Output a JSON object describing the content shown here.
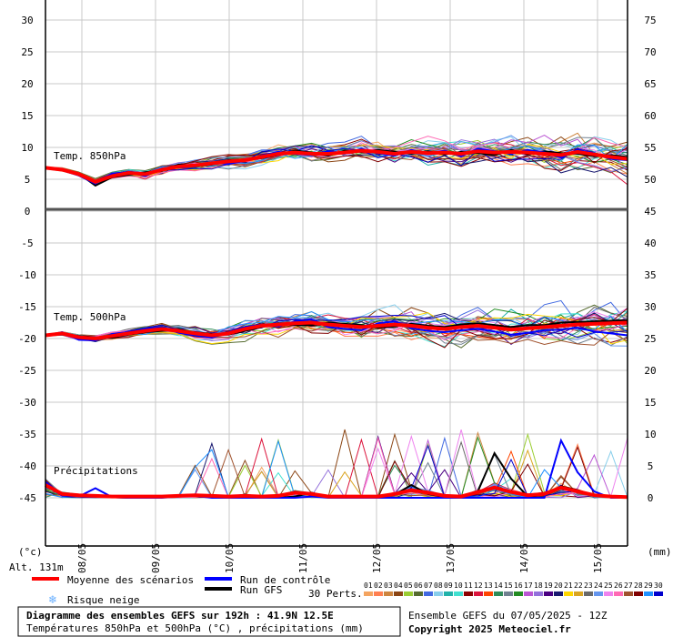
{
  "chart_data": {
    "type": "line",
    "x_dates": [
      "08/05",
      "09/05",
      "10/05",
      "11/05",
      "12/05",
      "13/05",
      "14/05",
      "15/05"
    ],
    "left_axis": {
      "unit": "(°c)",
      "ticks": [
        30,
        25,
        20,
        15,
        10,
        5,
        0,
        -5,
        -10,
        -15,
        -20,
        -25,
        -30,
        -35,
        -40,
        -45
      ]
    },
    "right_axis": {
      "unit": "(mm)",
      "ticks": [
        75,
        70,
        65,
        60,
        55,
        50,
        45,
        40,
        35,
        30,
        25,
        20,
        15,
        10,
        5,
        0
      ]
    },
    "altitude_label": "Alt. 131m",
    "panels": {
      "t850": {
        "label": "Temp. 850hPa",
        "mean": [
          6.8,
          6.5,
          5.8,
          4.6,
          5.5,
          6.0,
          5.8,
          6.5,
          7.0,
          7.2,
          7.5,
          7.8,
          8.0,
          8.5,
          9.0,
          9.2,
          9.0,
          9.0,
          9.2,
          9.5,
          9.3,
          9.0,
          9.3,
          9.1,
          9.2,
          9.0,
          9.4,
          9.2,
          9.3,
          9.2,
          9.0,
          8.8,
          9.3,
          8.9,
          8.5,
          8.2
        ],
        "control": [
          6.9,
          6.4,
          5.6,
          4.3,
          5.9,
          6.1,
          5.5,
          6.7,
          6.8,
          7.0,
          7.7,
          7.4,
          7.9,
          8.7,
          9.3,
          9.0,
          8.8,
          9.4,
          9.0,
          9.8,
          9.1,
          8.7,
          9.6,
          9.0,
          9.5,
          8.6,
          9.8,
          9.4,
          9.0,
          9.6,
          9.2,
          8.4,
          9.6,
          9.1,
          8.2,
          8.0
        ],
        "gfs": [
          6.7,
          6.6,
          5.9,
          4.0,
          5.3,
          5.7,
          6.1,
          6.3,
          7.3,
          7.1,
          7.3,
          8.0,
          8.1,
          8.3,
          8.8,
          9.5,
          9.2,
          8.7,
          9.5,
          9.3,
          9.6,
          9.3,
          9.0,
          9.4,
          8.9,
          9.3,
          9.1,
          8.8,
          9.6,
          8.9,
          9.4,
          9.1,
          9.0,
          8.6,
          8.8,
          8.5
        ]
      },
      "t500": {
        "label": "Temp. 500hPa",
        "mean": [
          -19.5,
          -19.2,
          -19.8,
          -20.0,
          -19.6,
          -19.2,
          -18.8,
          -18.5,
          -18.8,
          -19.2,
          -19.5,
          -19.2,
          -18.5,
          -18.0,
          -17.8,
          -17.6,
          -17.5,
          -17.8,
          -18.0,
          -18.2,
          -18.0,
          -17.8,
          -18.0,
          -18.3,
          -18.5,
          -18.2,
          -18.0,
          -18.3,
          -18.6,
          -18.4,
          -18.2,
          -18.0,
          -17.8,
          -17.7,
          -17.6,
          -17.5
        ],
        "control": [
          -19.6,
          -19.0,
          -20.2,
          -20.3,
          -19.3,
          -19.0,
          -18.5,
          -18.2,
          -19.1,
          -19.5,
          -19.8,
          -19.0,
          -18.2,
          -17.8,
          -18.1,
          -17.3,
          -17.0,
          -18.2,
          -18.5,
          -18.7,
          -17.6,
          -17.3,
          -18.4,
          -18.8,
          -19.0,
          -18.7,
          -18.5,
          -18.9,
          -19.4,
          -19.1,
          -18.7,
          -18.6,
          -18.3,
          -18.9,
          -19.2,
          -19.5
        ],
        "gfs": [
          -19.4,
          -19.3,
          -19.6,
          -19.8,
          -19.9,
          -19.4,
          -19.0,
          -18.8,
          -18.6,
          -19.0,
          -19.3,
          -19.4,
          -18.8,
          -18.2,
          -17.6,
          -17.9,
          -17.9,
          -17.5,
          -17.7,
          -17.9,
          -18.3,
          -18.1,
          -17.7,
          -18.0,
          -18.2,
          -17.8,
          -17.6,
          -17.9,
          -18.2,
          -17.9,
          -17.9,
          -17.5,
          -17.4,
          -17.3,
          -17.2,
          -17.1
        ]
      },
      "precip": {
        "label": "Précipitations",
        "mean": [
          2.0,
          0.6,
          0.4,
          0.3,
          0.2,
          0.2,
          0.2,
          0.2,
          0.3,
          0.4,
          0.3,
          0.2,
          0.3,
          0.2,
          0.3,
          0.8,
          0.6,
          0.2,
          0.2,
          0.2,
          0.2,
          0.6,
          1.2,
          0.8,
          0.3,
          0.2,
          0.9,
          1.6,
          0.9,
          0.4,
          0.6,
          1.6,
          1.0,
          0.4,
          0.2,
          0.1
        ],
        "control": [
          2.5,
          0.4,
          0.2,
          1.5,
          0.1,
          0.0,
          0.0,
          0.0,
          0.2,
          0.3,
          0.0,
          0.0,
          0.0,
          0.0,
          0.0,
          0.0,
          0.2,
          0.0,
          0.0,
          0.0,
          0.0,
          0.0,
          0.0,
          0.0,
          0.0,
          0.0,
          0.0,
          0.0,
          0.0,
          0.0,
          0.0,
          9.0,
          4.0,
          1.0,
          0.0,
          0.0
        ],
        "gfs": [
          1.8,
          0.5,
          0.3,
          0.2,
          0.1,
          0.0,
          0.2,
          0.1,
          0.4,
          0.5,
          0.1,
          0.1,
          0.5,
          0.1,
          0.0,
          0.2,
          0.8,
          0.1,
          0.1,
          0.0,
          0.1,
          0.5,
          2.0,
          0.6,
          0.1,
          0.0,
          1.0,
          7.0,
          3.0,
          0.2,
          0.4,
          1.8,
          1.2,
          0.3,
          0.1,
          0.0
        ]
      }
    },
    "legend": {
      "mean": "Moyenne des scénarios",
      "control": "Run de contrôle",
      "gfs": "Run GFS",
      "snow": "Risque neige",
      "perts_label": "30 Perts.",
      "perts": [
        "01",
        "02",
        "03",
        "04",
        "05",
        "06",
        "07",
        "08",
        "09",
        "10",
        "11",
        "12",
        "13",
        "14",
        "15",
        "16",
        "17",
        "18",
        "19",
        "20",
        "21",
        "22",
        "23",
        "24",
        "25",
        "26",
        "27",
        "28",
        "29",
        "30"
      ],
      "pert_colors": [
        "#f4a460",
        "#ff7f50",
        "#cd853f",
        "#8b4513",
        "#9acd32",
        "#556b2f",
        "#4169e1",
        "#87ceeb",
        "#20b2aa",
        "#40e0d0",
        "#8b0000",
        "#dc143c",
        "#ff4500",
        "#2e8b57",
        "#708090",
        "#228b22",
        "#ba55d3",
        "#9370db",
        "#4b0082",
        "#191970",
        "#ffd700",
        "#daa520",
        "#696969",
        "#6495ed",
        "#ee82ee",
        "#ff69b4",
        "#a0522d",
        "#800000",
        "#1e90ff",
        "#0000cd"
      ],
      "colors": {
        "mean": "#ff0000",
        "control": "#0000ff",
        "gfs": "#000000",
        "snow": "#6ab0ff"
      }
    },
    "footer": {
      "title": "Diagramme des ensembles GEFS sur 192h : 41.9N 12.5E",
      "subtitle": "Températures 850hPa et 500hPa (°C) , précipitations (mm)",
      "run": "Ensemble GEFS du 07/05/2025 - 12Z",
      "copyright": "Copyright 2025 Meteociel.fr"
    }
  }
}
